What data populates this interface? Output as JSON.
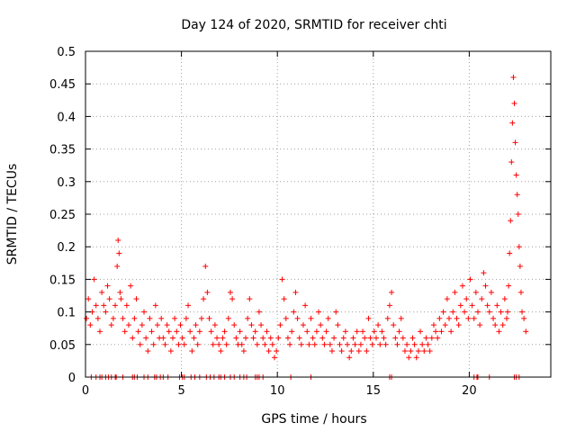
{
  "chart_data": {
    "type": "scatter",
    "title": "Day 124 of 2020, SRMTID for receiver chti",
    "xlabel": "GPS time / hours",
    "ylabel": "SRMTID / TECUs",
    "xlim": [
      0,
      24.25
    ],
    "ylim": [
      0,
      0.5
    ],
    "x_ticks": [
      0,
      5,
      10,
      15,
      20
    ],
    "y_ticks": [
      0,
      0.05,
      0.1,
      0.15,
      0.2,
      0.25,
      0.3,
      0.35,
      0.4,
      0.45,
      0.5
    ],
    "x_tick_labels": [
      "0",
      "5",
      "10",
      "15",
      "20"
    ],
    "y_tick_labels": [
      "0",
      "0.05",
      "0.1",
      "0.15",
      "0.2",
      "0.25",
      "0.3",
      "0.35",
      "0.4",
      "0.45",
      "0.5"
    ],
    "grid": true,
    "marker": "+",
    "color": "#ff0000",
    "series": [
      {
        "name": "SRMTID",
        "x": [
          0.05,
          0.15,
          0.25,
          0.35,
          0.45,
          0.55,
          0.65,
          0.75,
          0.85,
          0.95,
          1.05,
          1.15,
          1.25,
          1.35,
          1.45,
          1.55,
          1.65,
          1.7,
          1.75,
          1.8,
          1.85,
          1.95,
          2.05,
          2.15,
          2.25,
          2.35,
          2.45,
          2.55,
          2.65,
          2.75,
          2.85,
          2.95,
          3.05,
          3.15,
          3.25,
          3.35,
          3.45,
          3.55,
          3.65,
          3.75,
          3.85,
          3.95,
          4.05,
          4.15,
          4.25,
          4.35,
          4.45,
          4.55,
          4.65,
          4.75,
          4.85,
          4.95,
          5.05,
          5.15,
          5.25,
          5.35,
          5.45,
          5.55,
          5.65,
          5.75,
          5.85,
          5.95,
          6.05,
          6.15,
          6.25,
          6.35,
          6.45,
          6.55,
          6.65,
          6.75,
          6.85,
          6.95,
          7.05,
          7.15,
          7.25,
          7.35,
          7.45,
          7.55,
          7.65,
          7.75,
          7.85,
          7.95,
          8.05,
          8.15,
          8.25,
          8.35,
          8.45,
          8.55,
          8.65,
          8.75,
          8.85,
          8.95,
          9.05,
          9.15,
          9.25,
          9.35,
          9.45,
          9.55,
          9.65,
          9.75,
          9.85,
          9.95,
          10.05,
          10.15,
          10.25,
          10.35,
          10.45,
          10.55,
          10.65,
          10.75,
          10.85,
          10.95,
          11.05,
          11.15,
          11.25,
          11.35,
          11.45,
          11.55,
          11.65,
          11.75,
          11.85,
          11.95,
          12.05,
          12.15,
          12.25,
          12.35,
          12.45,
          12.55,
          12.65,
          12.75,
          12.85,
          12.95,
          13.05,
          13.15,
          13.25,
          13.35,
          13.45,
          13.55,
          13.65,
          13.75,
          13.85,
          13.95,
          14.05,
          14.15,
          14.25,
          14.35,
          14.45,
          14.55,
          14.65,
          14.75,
          14.85,
          14.95,
          15.05,
          15.15,
          15.25,
          15.35,
          15.45,
          15.55,
          15.65,
          15.75,
          15.85,
          15.95,
          16.05,
          16.15,
          16.25,
          16.35,
          16.45,
          16.55,
          16.65,
          16.75,
          16.85,
          16.95,
          17.05,
          17.15,
          17.25,
          17.35,
          17.45,
          17.55,
          17.65,
          17.75,
          17.85,
          17.95,
          18.05,
          18.15,
          18.25,
          18.35,
          18.45,
          18.55,
          18.65,
          18.75,
          18.85,
          18.95,
          19.05,
          19.15,
          19.25,
          19.35,
          19.45,
          19.55,
          19.65,
          19.75,
          19.85,
          19.95,
          20.05,
          20.15,
          20.25,
          20.35,
          20.45,
          20.55,
          20.65,
          20.75,
          20.85,
          20.95,
          21.05,
          21.15,
          21.25,
          21.35,
          21.45,
          21.55,
          21.65,
          21.75,
          21.85,
          21.95,
          22.0,
          22.05,
          22.1,
          22.15,
          22.2,
          22.25,
          22.3,
          22.35,
          22.4,
          22.45,
          22.5,
          22.55,
          22.6,
          22.65,
          22.7,
          22.75,
          22.85,
          22.95
        ],
        "y": [
          0.09,
          0.12,
          0.08,
          0.1,
          0.15,
          0.11,
          0.09,
          0.07,
          0.13,
          0.11,
          0.1,
          0.14,
          0.12,
          0.08,
          0.09,
          0.11,
          0.17,
          0.21,
          0.19,
          0.13,
          0.12,
          0.09,
          0.07,
          0.11,
          0.08,
          0.14,
          0.06,
          0.09,
          0.12,
          0.07,
          0.05,
          0.08,
          0.1,
          0.06,
          0.04,
          0.09,
          0.07,
          0.05,
          0.11,
          0.08,
          0.06,
          0.09,
          0.06,
          0.05,
          0.08,
          0.07,
          0.04,
          0.06,
          0.09,
          0.07,
          0.05,
          0.08,
          0.06,
          0.05,
          0.09,
          0.11,
          0.07,
          0.04,
          0.06,
          0.08,
          0.05,
          0.07,
          0.09,
          0.12,
          0.17,
          0.13,
          0.09,
          0.07,
          0.05,
          0.08,
          0.06,
          0.05,
          0.04,
          0.06,
          0.07,
          0.05,
          0.09,
          0.13,
          0.12,
          0.08,
          0.06,
          0.05,
          0.07,
          0.05,
          0.04,
          0.06,
          0.09,
          0.12,
          0.08,
          0.06,
          0.07,
          0.05,
          0.1,
          0.08,
          0.06,
          0.05,
          0.07,
          0.04,
          0.06,
          0.05,
          0.03,
          0.04,
          0.06,
          0.08,
          0.15,
          0.12,
          0.09,
          0.06,
          0.05,
          0.07,
          0.1,
          0.13,
          0.09,
          0.06,
          0.05,
          0.08,
          0.11,
          0.07,
          0.05,
          0.09,
          0.06,
          0.05,
          0.07,
          0.1,
          0.08,
          0.06,
          0.05,
          0.07,
          0.09,
          0.05,
          0.04,
          0.06,
          0.1,
          0.08,
          0.05,
          0.04,
          0.06,
          0.07,
          0.05,
          0.03,
          0.04,
          0.06,
          0.05,
          0.07,
          0.04,
          0.05,
          0.07,
          0.06,
          0.04,
          0.09,
          0.06,
          0.05,
          0.07,
          0.06,
          0.08,
          0.05,
          0.07,
          0.06,
          0.05,
          0.09,
          0.11,
          0.13,
          0.08,
          0.06,
          0.05,
          0.07,
          0.09,
          0.06,
          0.04,
          0.05,
          0.03,
          0.04,
          0.06,
          0.05,
          0.03,
          0.04,
          0.07,
          0.05,
          0.04,
          0.06,
          0.05,
          0.04,
          0.06,
          0.08,
          0.07,
          0.06,
          0.09,
          0.07,
          0.1,
          0.08,
          0.12,
          0.09,
          0.07,
          0.1,
          0.13,
          0.09,
          0.08,
          0.11,
          0.14,
          0.1,
          0.12,
          0.09,
          0.15,
          0.11,
          0.09,
          0.13,
          0.1,
          0.08,
          0.12,
          0.16,
          0.14,
          0.11,
          0.1,
          0.13,
          0.09,
          0.08,
          0.11,
          0.07,
          0.1,
          0.08,
          0.12,
          0.09,
          0.1,
          0.14,
          0.19,
          0.24,
          0.33,
          0.39,
          0.46,
          0.42,
          0.36,
          0.31,
          0.28,
          0.25,
          0.2,
          0.17,
          0.13,
          0.1,
          0.09,
          0.07
        ]
      },
      {
        "name": "zero-level markers",
        "x": [
          0.3,
          0.55,
          0.75,
          0.85,
          1.05,
          1.2,
          1.35,
          1.55,
          1.6,
          1.95,
          2.45,
          2.55,
          2.7,
          3.05,
          3.25,
          3.6,
          3.7,
          3.9,
          4.05,
          4.3,
          4.9,
          5.05,
          5.15,
          5.5,
          5.7,
          5.95,
          6.3,
          6.5,
          6.7,
          6.95,
          7.05,
          7.25,
          7.55,
          7.75,
          8.05,
          8.25,
          8.4,
          8.85,
          8.95,
          9.05,
          9.25,
          10.7,
          11.75,
          15.85,
          15.95,
          20.25,
          20.4,
          20.45,
          21.05,
          22.35,
          22.45,
          22.6
        ],
        "y": [
          0,
          0,
          0,
          0,
          0,
          0,
          0,
          0,
          0,
          0,
          0,
          0,
          0,
          0,
          0,
          0,
          0,
          0,
          0,
          0,
          0,
          0,
          0,
          0,
          0,
          0,
          0,
          0,
          0,
          0,
          0,
          0,
          0,
          0,
          0,
          0,
          0,
          0,
          0,
          0,
          0,
          0,
          0,
          0,
          0,
          0,
          0,
          0,
          0,
          0,
          0,
          0
        ]
      }
    ]
  }
}
